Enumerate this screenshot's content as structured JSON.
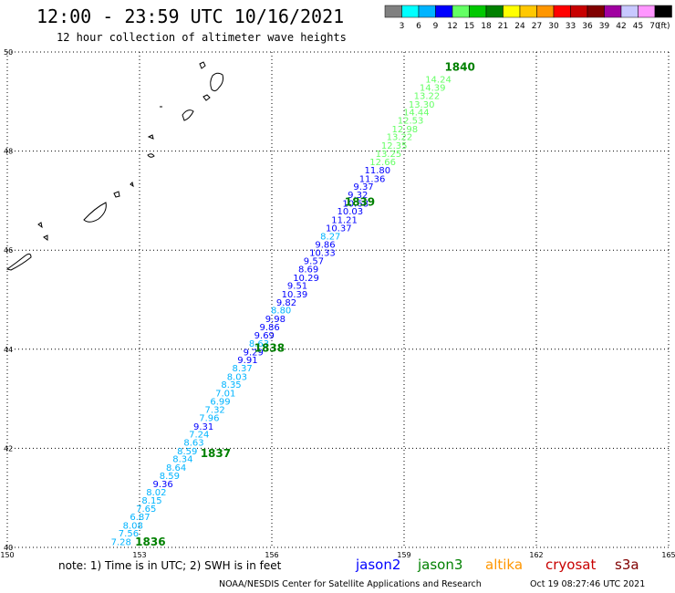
{
  "header": {
    "title": "12:00 - 23:59 UTC 10/16/2021",
    "subtitle": "12 hour collection of altimeter wave heights"
  },
  "colorbar": {
    "colors": [
      "#808080",
      "#00ffff",
      "#00b4ff",
      "#0000ff",
      "#64ff64",
      "#00c800",
      "#008000",
      "#ffff00",
      "#ffc800",
      "#ff9600",
      "#ff0000",
      "#c80000",
      "#800000",
      "#a000a0",
      "#c8c8ff",
      "#ff96ff",
      "#000000"
    ],
    "labels": [
      "3",
      "6",
      "9",
      "12",
      "15",
      "18",
      "21",
      "24",
      "27",
      "30",
      "33",
      "36",
      "39",
      "42",
      "45",
      "70"
    ],
    "unit": "(ft)"
  },
  "axes": {
    "lon_ticks": [
      "150",
      "153",
      "156",
      "159",
      "162",
      "165"
    ],
    "lat_ticks": [
      "50",
      "48",
      "46",
      "44",
      "42",
      "40"
    ]
  },
  "chart_data": {
    "type": "scatter",
    "xlim": [
      150,
      165
    ],
    "ylim": [
      40,
      50
    ],
    "points": [
      {
        "lon": 152.35,
        "lat": 40.05,
        "v": "7.28",
        "c": "#00b4ff"
      },
      {
        "lon": 152.52,
        "lat": 40.22,
        "v": "7.56",
        "c": "#00b4ff"
      },
      {
        "lon": 152.62,
        "lat": 40.38,
        "v": "8.08",
        "c": "#00b4ff"
      },
      {
        "lon": 152.78,
        "lat": 40.55,
        "v": "6.87",
        "c": "#00b4ff"
      },
      {
        "lon": 152.92,
        "lat": 40.72,
        "v": "7.65",
        "c": "#00b4ff"
      },
      {
        "lon": 153.05,
        "lat": 40.88,
        "v": "8.15",
        "c": "#00b4ff"
      },
      {
        "lon": 153.15,
        "lat": 41.05,
        "v": "8.02",
        "c": "#00b4ff"
      },
      {
        "lon": 153.3,
        "lat": 41.22,
        "v": "9.36",
        "c": "#0000ff"
      },
      {
        "lon": 153.45,
        "lat": 41.38,
        "v": "8.59",
        "c": "#00b4ff"
      },
      {
        "lon": 153.6,
        "lat": 41.55,
        "v": "8.64",
        "c": "#00b4ff"
      },
      {
        "lon": 153.75,
        "lat": 41.72,
        "v": "8.34",
        "c": "#00b4ff"
      },
      {
        "lon": 153.85,
        "lat": 41.88,
        "v": "8.59",
        "c": "#00b4ff"
      },
      {
        "lon": 154.0,
        "lat": 42.05,
        "v": "8.63",
        "c": "#00b4ff"
      },
      {
        "lon": 154.12,
        "lat": 42.22,
        "v": "7.24",
        "c": "#00b4ff"
      },
      {
        "lon": 154.22,
        "lat": 42.38,
        "v": "9.31",
        "c": "#0000ff"
      },
      {
        "lon": 154.35,
        "lat": 42.55,
        "v": "7.96",
        "c": "#00b4ff"
      },
      {
        "lon": 154.48,
        "lat": 42.72,
        "v": "7.32",
        "c": "#00b4ff"
      },
      {
        "lon": 154.6,
        "lat": 42.88,
        "v": "6.99",
        "c": "#00b4ff"
      },
      {
        "lon": 154.72,
        "lat": 43.05,
        "v": "7.01",
        "c": "#00b4ff"
      },
      {
        "lon": 154.85,
        "lat": 43.22,
        "v": "8.35",
        "c": "#00b4ff"
      },
      {
        "lon": 154.98,
        "lat": 43.38,
        "v": "8.03",
        "c": "#00b4ff"
      },
      {
        "lon": 155.1,
        "lat": 43.55,
        "v": "8.37",
        "c": "#00b4ff"
      },
      {
        "lon": 155.22,
        "lat": 43.72,
        "v": "9.91",
        "c": "#0000ff"
      },
      {
        "lon": 155.35,
        "lat": 43.88,
        "v": "9.29",
        "c": "#0000ff"
      },
      {
        "lon": 155.48,
        "lat": 44.05,
        "v": "8.63",
        "c": "#00b4ff"
      },
      {
        "lon": 155.6,
        "lat": 44.22,
        "v": "9.69",
        "c": "#0000ff"
      },
      {
        "lon": 155.72,
        "lat": 44.38,
        "v": "9.86",
        "c": "#0000ff"
      },
      {
        "lon": 155.85,
        "lat": 44.55,
        "v": "9.98",
        "c": "#0000ff"
      },
      {
        "lon": 155.98,
        "lat": 44.72,
        "v": "8.80",
        "c": "#00b4ff"
      },
      {
        "lon": 156.1,
        "lat": 44.88,
        "v": "9.82",
        "c": "#0000ff"
      },
      {
        "lon": 156.22,
        "lat": 45.05,
        "v": "10.39",
        "c": "#0000ff"
      },
      {
        "lon": 156.35,
        "lat": 45.22,
        "v": "9.51",
        "c": "#0000ff"
      },
      {
        "lon": 156.48,
        "lat": 45.38,
        "v": "10.29",
        "c": "#0000ff"
      },
      {
        "lon": 156.6,
        "lat": 45.55,
        "v": "8.69",
        "c": "#0000ff"
      },
      {
        "lon": 156.72,
        "lat": 45.72,
        "v": "9.57",
        "c": "#0000ff"
      },
      {
        "lon": 156.85,
        "lat": 45.88,
        "v": "10.33",
        "c": "#0000ff"
      },
      {
        "lon": 156.98,
        "lat": 46.05,
        "v": "9.86",
        "c": "#0000ff"
      },
      {
        "lon": 157.1,
        "lat": 46.22,
        "v": "8.27",
        "c": "#00b4ff"
      },
      {
        "lon": 157.22,
        "lat": 46.38,
        "v": "10.37",
        "c": "#0000ff"
      },
      {
        "lon": 157.35,
        "lat": 46.55,
        "v": "11.21",
        "c": "#0000ff"
      },
      {
        "lon": 157.48,
        "lat": 46.72,
        "v": "10.03",
        "c": "#0000ff"
      },
      {
        "lon": 157.6,
        "lat": 46.88,
        "v": "10.68",
        "c": "#0000ff"
      },
      {
        "lon": 157.72,
        "lat": 47.05,
        "v": "9.32",
        "c": "#0000ff"
      },
      {
        "lon": 157.85,
        "lat": 47.22,
        "v": "9.37",
        "c": "#0000ff"
      },
      {
        "lon": 157.98,
        "lat": 47.38,
        "v": "11.36",
        "c": "#0000ff"
      },
      {
        "lon": 158.1,
        "lat": 47.55,
        "v": "11.80",
        "c": "#0000ff"
      },
      {
        "lon": 158.22,
        "lat": 47.72,
        "v": "12.66",
        "c": "#64ff64"
      },
      {
        "lon": 158.35,
        "lat": 47.88,
        "v": "13.25",
        "c": "#64ff64"
      },
      {
        "lon": 158.48,
        "lat": 48.05,
        "v": "12.35",
        "c": "#64ff64"
      },
      {
        "lon": 158.6,
        "lat": 48.22,
        "v": "13.22",
        "c": "#64ff64"
      },
      {
        "lon": 158.72,
        "lat": 48.38,
        "v": "12.98",
        "c": "#64ff64"
      },
      {
        "lon": 158.85,
        "lat": 48.55,
        "v": "12.53",
        "c": "#64ff64"
      },
      {
        "lon": 158.98,
        "lat": 48.72,
        "v": "14.44",
        "c": "#64ff64"
      },
      {
        "lon": 159.1,
        "lat": 48.88,
        "v": "13.30",
        "c": "#64ff64"
      },
      {
        "lon": 159.22,
        "lat": 49.05,
        "v": "13.22",
        "c": "#64ff64"
      },
      {
        "lon": 159.35,
        "lat": 49.22,
        "v": "14.39",
        "c": "#64ff64"
      },
      {
        "lon": 159.48,
        "lat": 49.38,
        "v": "14.24",
        "c": "#64ff64"
      }
    ],
    "pass_labels": [
      {
        "lon": 152.9,
        "lat": 40.04,
        "text": "1836"
      },
      {
        "lon": 154.38,
        "lat": 41.82,
        "text": "1837"
      },
      {
        "lon": 155.6,
        "lat": 43.95,
        "text": "1838"
      },
      {
        "lon": 157.65,
        "lat": 46.9,
        "text": "1839"
      },
      {
        "lon": 159.92,
        "lat": 49.62,
        "text": "1840"
      }
    ]
  },
  "footer": {
    "note": "note: 1) Time is in UTC; 2) SWH is in feet",
    "legend": [
      {
        "name": "jason2",
        "color": "#0000ff"
      },
      {
        "name": "jason3",
        "color": "#008000"
      },
      {
        "name": "altika",
        "color": "#ff9600"
      },
      {
        "name": "cryosat",
        "color": "#c80000"
      },
      {
        "name": "s3a",
        "color": "#800000"
      }
    ],
    "credit": "NOAA/NESDIS Center for Satellite Applications and Research",
    "timestamp": "Oct 19 08:27:46 UTC 2021"
  }
}
